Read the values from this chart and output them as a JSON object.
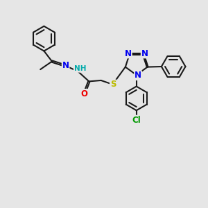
{
  "bg_color": "#e6e6e6",
  "bond_color": "#1a1a1a",
  "bond_lw": 1.5,
  "dbo": 0.038,
  "atom_colors": {
    "N": "#0000ee",
    "O": "#ee0000",
    "S": "#bbbb00",
    "Cl": "#009900",
    "NH": "#00aaaa"
  },
  "fs": 8.5,
  "xlim": [
    -1.5,
    8.5
  ],
  "ylim": [
    -5.8,
    4.5
  ]
}
